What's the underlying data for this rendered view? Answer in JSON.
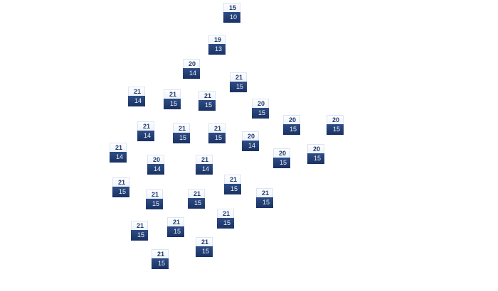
{
  "nodes": [
    {
      "top": "15",
      "bottom": "10"
    },
    {
      "top": "19",
      "bottom": "13"
    },
    {
      "top": "20",
      "bottom": "14"
    },
    {
      "top": "21",
      "bottom": "15"
    },
    {
      "top": "21",
      "bottom": "14"
    },
    {
      "top": "21",
      "bottom": "15"
    },
    {
      "top": "21",
      "bottom": "15"
    },
    {
      "top": "20",
      "bottom": "15"
    },
    {
      "top": "20",
      "bottom": "15"
    },
    {
      "top": "20",
      "bottom": "15"
    },
    {
      "top": "21",
      "bottom": "14"
    },
    {
      "top": "21",
      "bottom": "15"
    },
    {
      "top": "21",
      "bottom": "15"
    },
    {
      "top": "20",
      "bottom": "14"
    },
    {
      "top": "21",
      "bottom": "14"
    },
    {
      "top": "20",
      "bottom": "15"
    },
    {
      "top": "20",
      "bottom": "15"
    },
    {
      "top": "20",
      "bottom": "14"
    },
    {
      "top": "21",
      "bottom": "14"
    },
    {
      "top": "21",
      "bottom": "15"
    },
    {
      "top": "21",
      "bottom": "15"
    },
    {
      "top": "21",
      "bottom": "15"
    },
    {
      "top": "21",
      "bottom": "15"
    },
    {
      "top": "21",
      "bottom": "15"
    },
    {
      "top": "21",
      "bottom": "15"
    },
    {
      "top": "21",
      "bottom": "15"
    },
    {
      "top": "21",
      "bottom": "15"
    },
    {
      "top": "21",
      "bottom": "15"
    },
    {
      "top": "21",
      "bottom": "15"
    }
  ],
  "colors": {
    "node_top_text": "#1f3a6b",
    "node_bottom_fill": "#1f3a6b",
    "node_bottom_text": "#eef2f8"
  }
}
